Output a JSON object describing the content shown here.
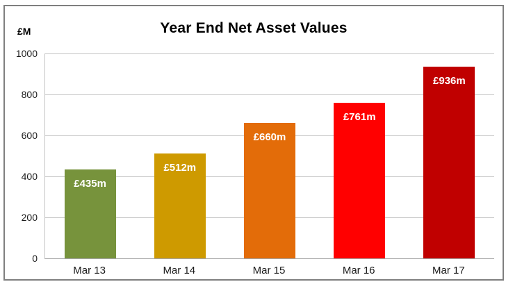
{
  "page": {
    "background": "#ffffff",
    "frame_border_color": "#7F7F7F"
  },
  "chart_data": {
    "type": "bar",
    "title": "Year End Net Asset Values",
    "y_unit_label": "£M",
    "categories": [
      "Mar 13",
      "Mar 14",
      "Mar 15",
      "Mar 16",
      "Mar 17"
    ],
    "values": [
      435,
      512,
      660,
      761,
      936
    ],
    "data_labels": [
      "£435m",
      "£512m",
      "£660m",
      "£761m",
      "£936m"
    ],
    "bar_colors": [
      "#77933C",
      "#CE9A00",
      "#E36C09",
      "#FF0000",
      "#C00000"
    ],
    "ylim": [
      0,
      1000
    ],
    "yticks": [
      0,
      200,
      400,
      600,
      800,
      1000
    ],
    "grid": true,
    "legend": "none",
    "colors": {
      "gridline": "#C3C3C3",
      "axis_line": "#A6A6A6",
      "tick_text": "#1a1a1a",
      "title_text": "#000000",
      "data_label_text": "#FFFFFF"
    }
  }
}
